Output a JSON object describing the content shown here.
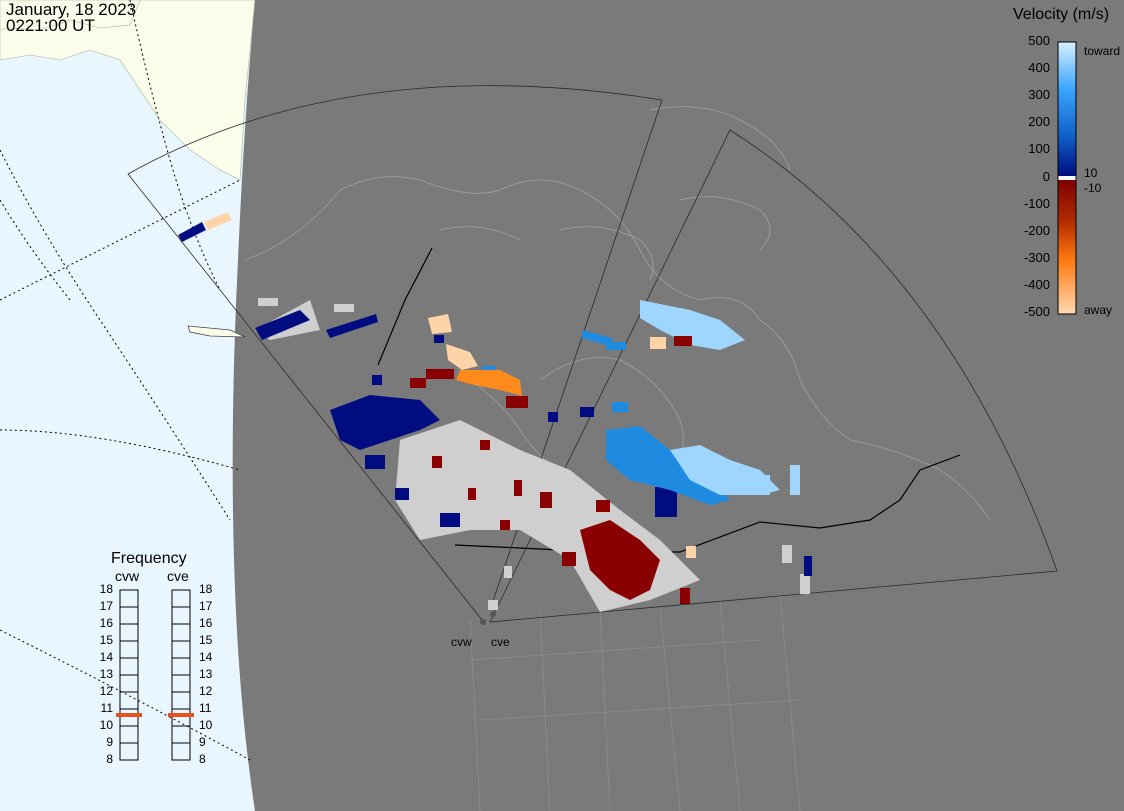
{
  "header": {
    "date": "January, 18 2023",
    "time": "0221:00 UT"
  },
  "legend": {
    "title": "Velocity (m/s)",
    "ticks": [
      "500",
      "400",
      "300",
      "200",
      "100",
      "0",
      "-100",
      "-200",
      "-300",
      "-400",
      "-500"
    ],
    "near_zero_pos": "10",
    "near_zero_neg": "-10",
    "toward_label": "toward",
    "away_label": "away",
    "colors": {
      "toward_max": "#d8f0ff",
      "toward_mid": "#1e90ff",
      "toward_low": "#000c80",
      "away_low": "#7f0000",
      "away_mid": "#ff6a00",
      "away_max": "#ffd9b3",
      "ground_scatter": "#cfcfcf"
    }
  },
  "frequency_panel": {
    "title": "Frequency",
    "columns": [
      {
        "name": "cvw",
        "value_mhz": 11
      },
      {
        "name": "cve",
        "value_mhz": 11
      }
    ],
    "scale": [
      "18",
      "17",
      "16",
      "15",
      "14",
      "13",
      "12",
      "11",
      "10",
      "9",
      "8"
    ],
    "indicator_color": "#e8501e"
  },
  "sites": [
    {
      "name": "cvw"
    },
    {
      "name": "cve"
    }
  ],
  "map_colors": {
    "night": "#7a7a7a",
    "land_outline": "#9a9a9a",
    "day_ocean": "#eaf6ff",
    "day_land": "#fbfdeb"
  }
}
